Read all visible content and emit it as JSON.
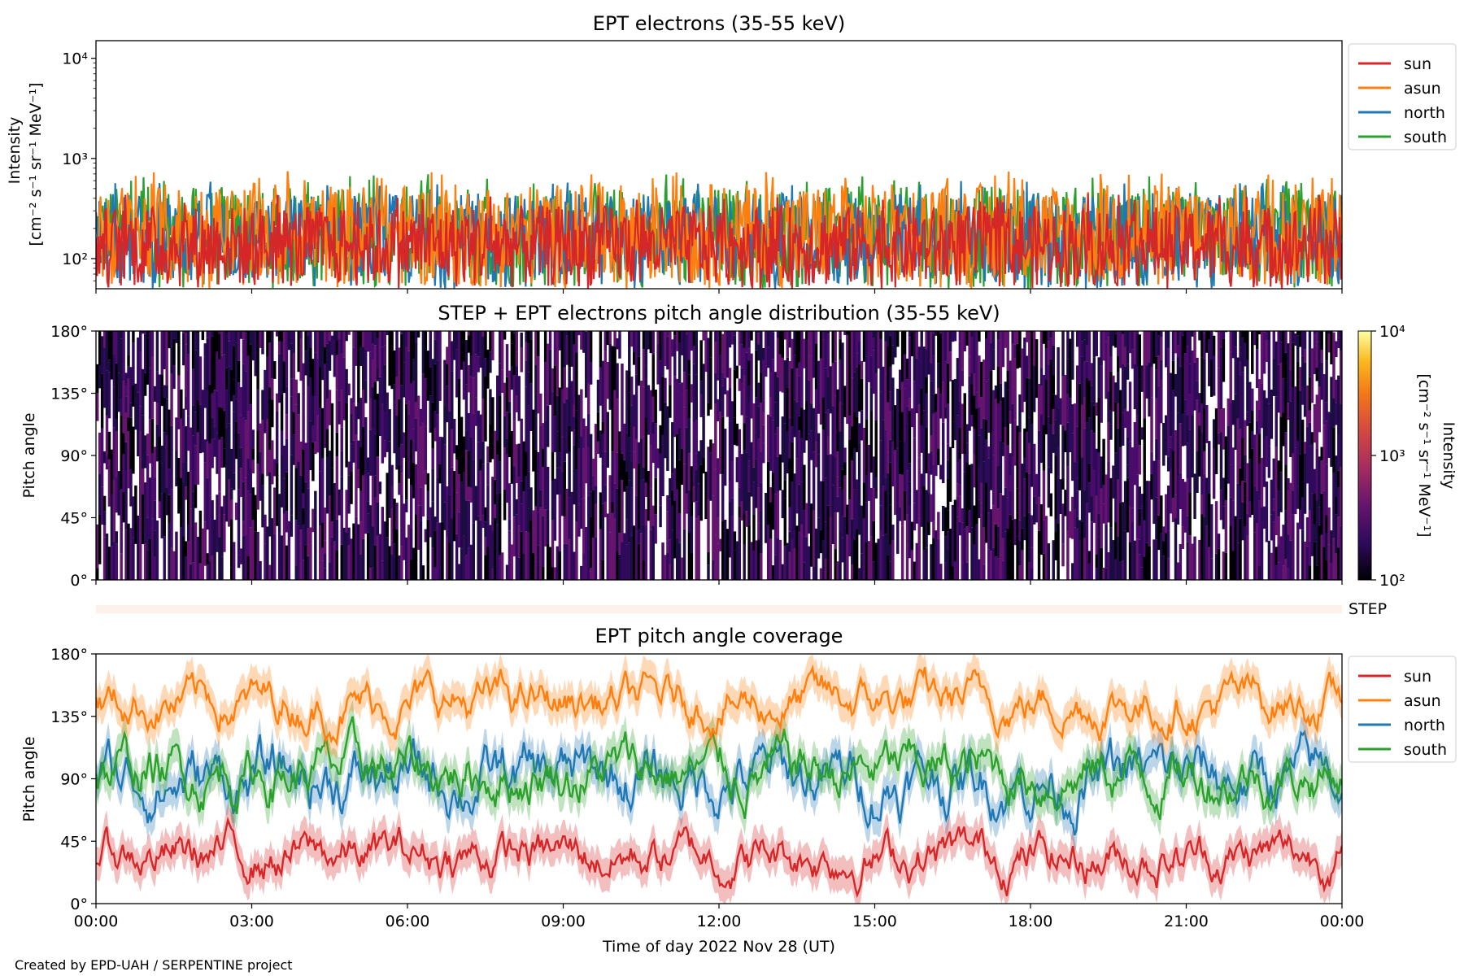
{
  "credit": "Created by EPD-UAH / SERPENTINE project",
  "xlabel": "Time of day 2022 Nov 28 (UT)",
  "x_ticks": [
    "00:00",
    "03:00",
    "06:00",
    "09:00",
    "12:00",
    "15:00",
    "18:00",
    "21:00",
    "00:00"
  ],
  "step_label": "STEP",
  "colors": {
    "sun": "#d62728",
    "asun": "#ff7f0e",
    "north": "#1f77b4",
    "south": "#2ca02c"
  },
  "chart_data": [
    {
      "type": "line",
      "title": "EPT electrons (35-55 keV)",
      "ylabel_line1": "Intensity",
      "ylabel_line2": "[cm⁻² s⁻¹ sr⁻¹ MeV⁻¹]",
      "yscale": "log",
      "ylim": [
        50,
        15000
      ],
      "yticks": [
        "10⁴",
        "10³",
        "10²"
      ],
      "ytick_values": [
        10000,
        1000,
        100
      ],
      "x_range_hours": [
        0,
        24
      ],
      "legend": "upper-right-outside",
      "series": [
        {
          "name": "south",
          "color_key": "south",
          "typical_range": [
            50,
            700
          ],
          "peak": 650
        },
        {
          "name": "north",
          "color_key": "north",
          "typical_range": [
            50,
            600
          ],
          "peak": 600
        },
        {
          "name": "asun",
          "color_key": "asun",
          "typical_range": [
            50,
            750
          ],
          "peak": 750
        },
        {
          "name": "sun",
          "color_key": "sun",
          "typical_range": [
            50,
            450
          ],
          "peak": 450
        }
      ],
      "legend_order": [
        "sun",
        "asun",
        "north",
        "south"
      ]
    },
    {
      "type": "heatmap",
      "title": "STEP + EPT electrons pitch angle distribution (35-55 keV)",
      "ylabel": "Pitch angle",
      "ylim": [
        0,
        180
      ],
      "yticks": [
        "180°",
        "135°",
        "90°",
        "45°",
        "0°"
      ],
      "ytick_values": [
        180,
        135,
        90,
        45,
        0
      ],
      "x_range_hours": [
        0,
        24
      ],
      "colorbar": {
        "label_line1": "Intensity",
        "label_line2": "[cm⁻² s⁻¹ sr⁻¹ MeV⁻¹]",
        "scale": "log",
        "range": [
          100,
          10000
        ],
        "ticks": [
          "10⁴",
          "10³",
          "10²"
        ],
        "tick_values": [
          10000,
          1000,
          100
        ],
        "colormap": "inferno"
      },
      "typical_intensity": [
        100,
        400
      ]
    },
    {
      "type": "line",
      "title": "EPT pitch angle coverage",
      "ylabel": "Pitch angle",
      "ylim": [
        0,
        180
      ],
      "yticks": [
        "180°",
        "135°",
        "90°",
        "45°",
        "0°"
      ],
      "ytick_values": [
        180,
        135,
        90,
        45,
        0
      ],
      "x_range_hours": [
        0,
        24
      ],
      "legend": "upper-right-outside",
      "series": [
        {
          "name": "sun",
          "color_key": "sun",
          "mean": 35,
          "spread": 20
        },
        {
          "name": "asun",
          "color_key": "asun",
          "mean": 145,
          "spread": 20
        },
        {
          "name": "north",
          "color_key": "north",
          "mean": 90,
          "spread": 28
        },
        {
          "name": "south",
          "color_key": "south",
          "mean": 95,
          "spread": 25
        }
      ],
      "legend_order": [
        "sun",
        "asun",
        "north",
        "south"
      ]
    }
  ]
}
